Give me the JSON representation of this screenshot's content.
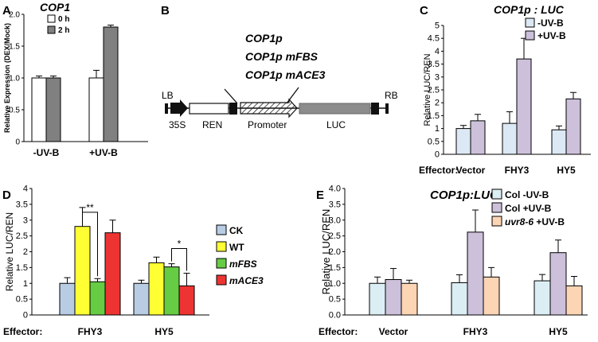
{
  "chart_data": [
    {
      "panel": "A",
      "type": "bar",
      "title": "COP1",
      "categories": [
        "-UV-B",
        "+UV-B"
      ],
      "series": [
        {
          "name": "0 h",
          "color": "#ffffff",
          "values": [
            1.0,
            1.0
          ],
          "errors": [
            0.03,
            0.12
          ]
        },
        {
          "name": "2 h",
          "color": "#808080",
          "values": [
            1.0,
            1.8
          ],
          "errors": [
            0.03,
            0.03
          ]
        }
      ],
      "ylabel": "Relative Expression (DEX/Mock)",
      "ylim": [
        0,
        2
      ],
      "yticks": [
        "0",
        "0.5",
        "1.0",
        "1.5",
        "2.0"
      ],
      "legend": "top-left"
    },
    {
      "panel": "C",
      "type": "bar",
      "title": "COP1p : LUC",
      "categories": [
        "Vector",
        "FHY3",
        "HY5"
      ],
      "series": [
        {
          "name": "-UV-B",
          "color": "#dce8f4",
          "values": [
            1.0,
            1.2,
            0.95
          ],
          "errors": [
            0.12,
            0.45,
            0.15
          ]
        },
        {
          "name": "+UV-B",
          "color": "#ccc0da",
          "values": [
            1.3,
            3.7,
            2.15
          ],
          "errors": [
            0.25,
            0.8,
            0.25
          ]
        }
      ],
      "ylabel": "Relative LUC/REN",
      "xlabel_prefix": "Effector:",
      "ylim": [
        0,
        5
      ],
      "yticks": [
        "0",
        "0.5",
        "1",
        "1.5",
        "2",
        "2.5",
        "3",
        "3.5",
        "4",
        "4.5",
        "5"
      ],
      "legend": "top-right"
    },
    {
      "panel": "D",
      "type": "bar",
      "categories": [
        "FHY3",
        "HY5"
      ],
      "series": [
        {
          "name": "CK",
          "color": "#b8cce4",
          "values": [
            1.0,
            1.0
          ],
          "errors": [
            0.18,
            0.1
          ]
        },
        {
          "name": "WT",
          "color": "#ffff33",
          "values": [
            2.8,
            1.65
          ],
          "errors": [
            0.6,
            0.18
          ]
        },
        {
          "name": "mFBS",
          "color": "#66cc44",
          "values": [
            1.05,
            1.52
          ],
          "errors": [
            0.1,
            0.1
          ]
        },
        {
          "name": "mACE3",
          "color": "#ee3333",
          "values": [
            2.6,
            0.92
          ],
          "errors": [
            0.4,
            0.4
          ]
        }
      ],
      "ylabel": "Relative LUC/REN",
      "xlabel_prefix": "Effector:",
      "ylim": [
        0,
        4
      ],
      "yticks": [
        "0",
        "0.5",
        "1",
        "1.5",
        "2",
        "2.5",
        "3",
        "3.5",
        "4"
      ],
      "annotations": [
        {
          "text": "**",
          "group": 0,
          "from": 1,
          "to": 2,
          "value": 3.25
        },
        {
          "text": "*",
          "group": 1,
          "from": 2,
          "to": 3,
          "value": 2.1
        }
      ],
      "legend": "right"
    },
    {
      "panel": "E",
      "type": "bar",
      "title": "COP1p:LUC",
      "categories": [
        "Vector",
        "FHY3",
        "HY5"
      ],
      "series": [
        {
          "name": "Col -UV-B",
          "color": "#dbeef4",
          "values": [
            1.0,
            1.02,
            1.08
          ],
          "errors": [
            0.2,
            0.25,
            0.2
          ]
        },
        {
          "name": "Col +UV-B",
          "color": "#ccc0da",
          "values": [
            1.12,
            2.62,
            1.97
          ],
          "errors": [
            0.35,
            0.7,
            0.4
          ]
        },
        {
          "name": "uvr8-6 +UV-B",
          "color": "#fcd5b5",
          "values": [
            1.0,
            1.2,
            0.92
          ],
          "errors": [
            0.1,
            0.3,
            0.3
          ]
        }
      ],
      "ylabel": "Relative LUC/REN",
      "xlabel_prefix": "Effector:",
      "ylim": [
        0,
        4
      ],
      "yticks": [
        "0.0",
        "0.5",
        "1.0",
        "1.5",
        "2.0",
        "2.5",
        "3.0",
        "3.5",
        "4.0"
      ],
      "legend": "top"
    }
  ],
  "panels": {
    "a": "A",
    "b": "B",
    "c": "C",
    "d": "D",
    "e": "E"
  },
  "diagram": {
    "constructs": [
      "COP1p",
      "COP1p mFBS",
      "COP1p mACE3"
    ],
    "lb": "LB",
    "rb": "RB",
    "labels": [
      "35S",
      "REN",
      "Promoter",
      "LUC"
    ]
  }
}
